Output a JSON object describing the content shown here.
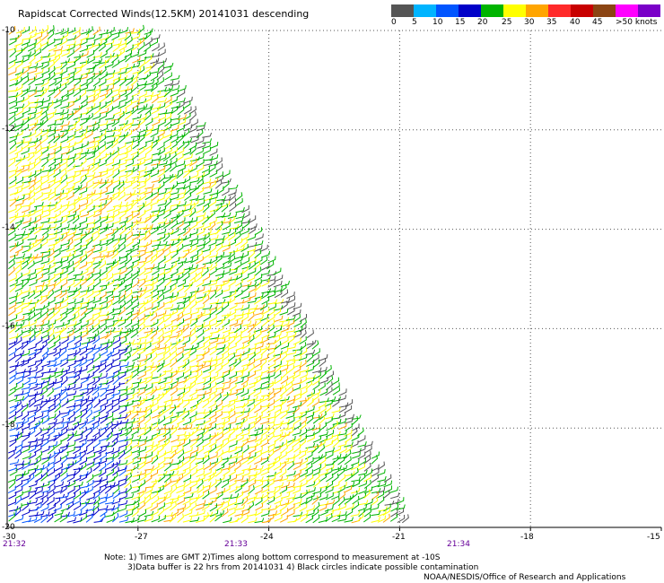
{
  "title": "Rapidscat Corrected Winds(12.5KM) 20141031 descending",
  "color_scale": {
    "labels": [
      "0",
      "5",
      "10",
      "15",
      "20",
      "25",
      "30",
      "35",
      "40",
      "45",
      ">50 knots"
    ],
    "colors": [
      "#555555",
      "#00b4ff",
      "#0055ff",
      "#0000c8",
      "#00b400",
      "#ffff00",
      "#ffa500",
      "#ff2a2a",
      "#c80000",
      "#8b4513",
      "#ff00ff",
      "#7a00c8"
    ]
  },
  "map": {
    "lat_labels": [
      "-10",
      "-12",
      "-14",
      "-16",
      "-18",
      "-20"
    ],
    "lon_labels": [
      "-30",
      "-27",
      "-24",
      "-21",
      "-18",
      "-15"
    ],
    "time_labels": [
      "21:32",
      "21:33",
      "21:34"
    ],
    "swath_edge": [
      [
        -27,
        -10
      ],
      [
        -21,
        -20
      ]
    ]
  },
  "notes": {
    "line1": "Note: 1) Times are GMT 2)Times along bottom correspond to measurement at -10S",
    "line2": "3)Data buffer is 22 hrs from 20141031 4) Black circles indicate possible contamination",
    "credit": "NOAA/NESDIS/Office of Research and Applications"
  }
}
